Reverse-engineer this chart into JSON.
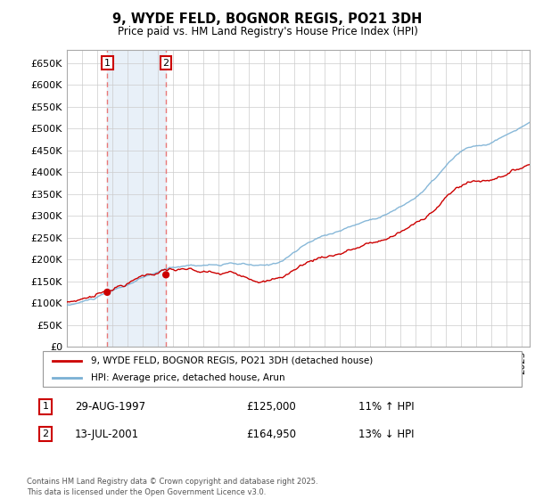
{
  "title": "9, WYDE FELD, BOGNOR REGIS, PO21 3DH",
  "subtitle": "Price paid vs. HM Land Registry's House Price Index (HPI)",
  "ylabel_ticks": [
    "£0",
    "£50K",
    "£100K",
    "£150K",
    "£200K",
    "£250K",
    "£300K",
    "£350K",
    "£400K",
    "£450K",
    "£500K",
    "£550K",
    "£600K",
    "£650K"
  ],
  "ytick_vals": [
    0,
    50000,
    100000,
    150000,
    200000,
    250000,
    300000,
    350000,
    400000,
    450000,
    500000,
    550000,
    600000,
    650000
  ],
  "ylim": [
    0,
    680000
  ],
  "xlim_start": 1995.0,
  "xlim_end": 2025.5,
  "sale1_date": 1997.66,
  "sale1_price": 125000,
  "sale2_date": 2001.53,
  "sale2_price": 164950,
  "legend_line1": "9, WYDE FELD, BOGNOR REGIS, PO21 3DH (detached house)",
  "legend_line2": "HPI: Average price, detached house, Arun",
  "table_row1": [
    "1",
    "29-AUG-1997",
    "£125,000",
    "11% ↑ HPI"
  ],
  "table_row2": [
    "2",
    "13-JUL-2001",
    "£164,950",
    "13% ↓ HPI"
  ],
  "footer": "Contains HM Land Registry data © Crown copyright and database right 2025.\nThis data is licensed under the Open Government Licence v3.0.",
  "color_red": "#cc0000",
  "color_blue": "#7ab0d4",
  "color_shaded": "#ddeeff",
  "color_grid": "#cccccc",
  "dashed_line_color": "#e87878"
}
